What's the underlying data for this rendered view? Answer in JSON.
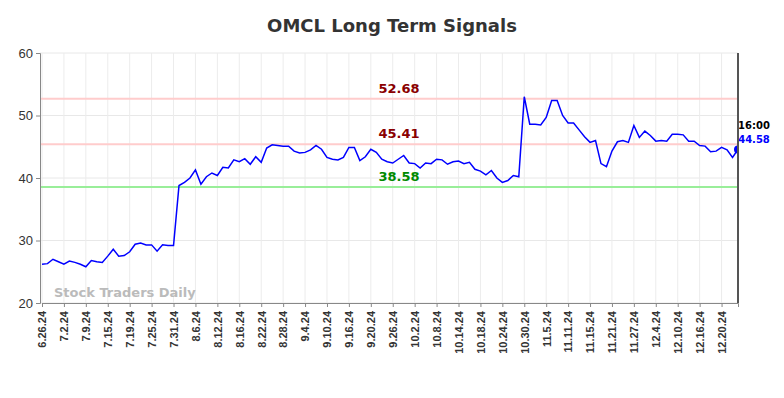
{
  "chart_data": {
    "type": "line",
    "title": "OMCL Long Term Signals",
    "color": "#0000ff",
    "grid": true,
    "categories": [
      "6.26.24",
      null,
      null,
      null,
      "7.2.24",
      null,
      null,
      null,
      "7.9.24",
      null,
      null,
      null,
      "7.15.24",
      null,
      null,
      null,
      "7.19.24",
      null,
      null,
      null,
      "7.25.24",
      null,
      null,
      null,
      "7.31.24",
      null,
      null,
      null,
      "8.6.24",
      null,
      null,
      null,
      "8.12.24",
      null,
      null,
      null,
      "8.16.24",
      null,
      null,
      null,
      "8.22.24",
      null,
      null,
      null,
      "8.28.24",
      null,
      null,
      null,
      "9.4.24",
      null,
      null,
      null,
      "9.10.24",
      null,
      null,
      null,
      "9.16.24",
      null,
      null,
      null,
      "9.20.24",
      null,
      null,
      null,
      "9.26.24",
      null,
      null,
      null,
      "10.2.24",
      null,
      null,
      null,
      "10.8.24",
      null,
      null,
      null,
      "10.14.24",
      null,
      null,
      null,
      "10.18.24",
      null,
      null,
      null,
      "10.24.24",
      null,
      null,
      null,
      "10.30.24",
      null,
      null,
      null,
      "11.5.24",
      null,
      null,
      null,
      "11.11.24",
      null,
      null,
      null,
      "11.15.24",
      null,
      null,
      null,
      "11.21.24",
      null,
      null,
      null,
      "11.27.24",
      null,
      null,
      null,
      "12.4.24",
      null,
      null,
      null,
      "12.10.24",
      null,
      null,
      null,
      "12.16.24",
      null,
      null,
      null,
      "12.20.24",
      null,
      null,
      null
    ],
    "values": [
      26.2,
      26.3,
      27.0,
      26.6,
      26.2,
      26.7,
      26.5,
      26.2,
      25.8,
      26.8,
      26.6,
      26.5,
      27.5,
      28.6,
      27.5,
      27.6,
      28.2,
      29.4,
      29.6,
      29.3,
      29.3,
      28.3,
      29.3,
      29.2,
      29.2,
      38.8,
      39.3,
      40.0,
      41.3,
      39.0,
      40.2,
      40.8,
      40.4,
      41.7,
      41.6,
      42.9,
      42.6,
      43.1,
      42.2,
      43.4,
      42.5,
      44.8,
      45.3,
      45.2,
      45.1,
      45.1,
      44.3,
      44.0,
      44.1,
      44.5,
      45.2,
      44.6,
      43.3,
      43.0,
      42.9,
      43.3,
      44.9,
      44.9,
      42.8,
      43.4,
      44.6,
      44.1,
      43.0,
      42.6,
      42.4,
      43.0,
      43.6,
      42.4,
      42.3,
      41.6,
      42.4,
      42.3,
      43.0,
      42.9,
      42.2,
      42.6,
      42.7,
      42.3,
      42.5,
      41.4,
      41.1,
      40.5,
      41.2,
      40.0,
      39.3,
      39.6,
      40.4,
      40.2,
      53.0,
      48.6,
      48.6,
      48.5,
      49.7,
      52.4,
      52.4,
      50.0,
      48.8,
      48.8,
      47.7,
      46.6,
      45.7,
      46.0,
      42.3,
      41.8,
      44.3,
      45.8,
      46.0,
      45.7,
      48.4,
      46.5,
      47.5,
      46.8,
      45.9,
      46.0,
      45.9,
      47.0,
      47.0,
      46.9,
      45.9,
      45.9,
      45.2,
      45.1,
      44.2,
      44.3,
      44.9,
      44.5,
      43.3,
      44.58
    ],
    "ylim": [
      20,
      60
    ],
    "yticks": [
      20,
      30,
      40,
      50,
      60
    ],
    "levels": [
      {
        "value": 52.68,
        "color": "#ffcccc"
      },
      {
        "value": 45.41,
        "color": "#ffcccc"
      },
      {
        "value": 38.58,
        "color": "#99ee99"
      }
    ],
    "annotations": [
      "16:00"
    ],
    "watermark": "Stock Traders Daily"
  }
}
